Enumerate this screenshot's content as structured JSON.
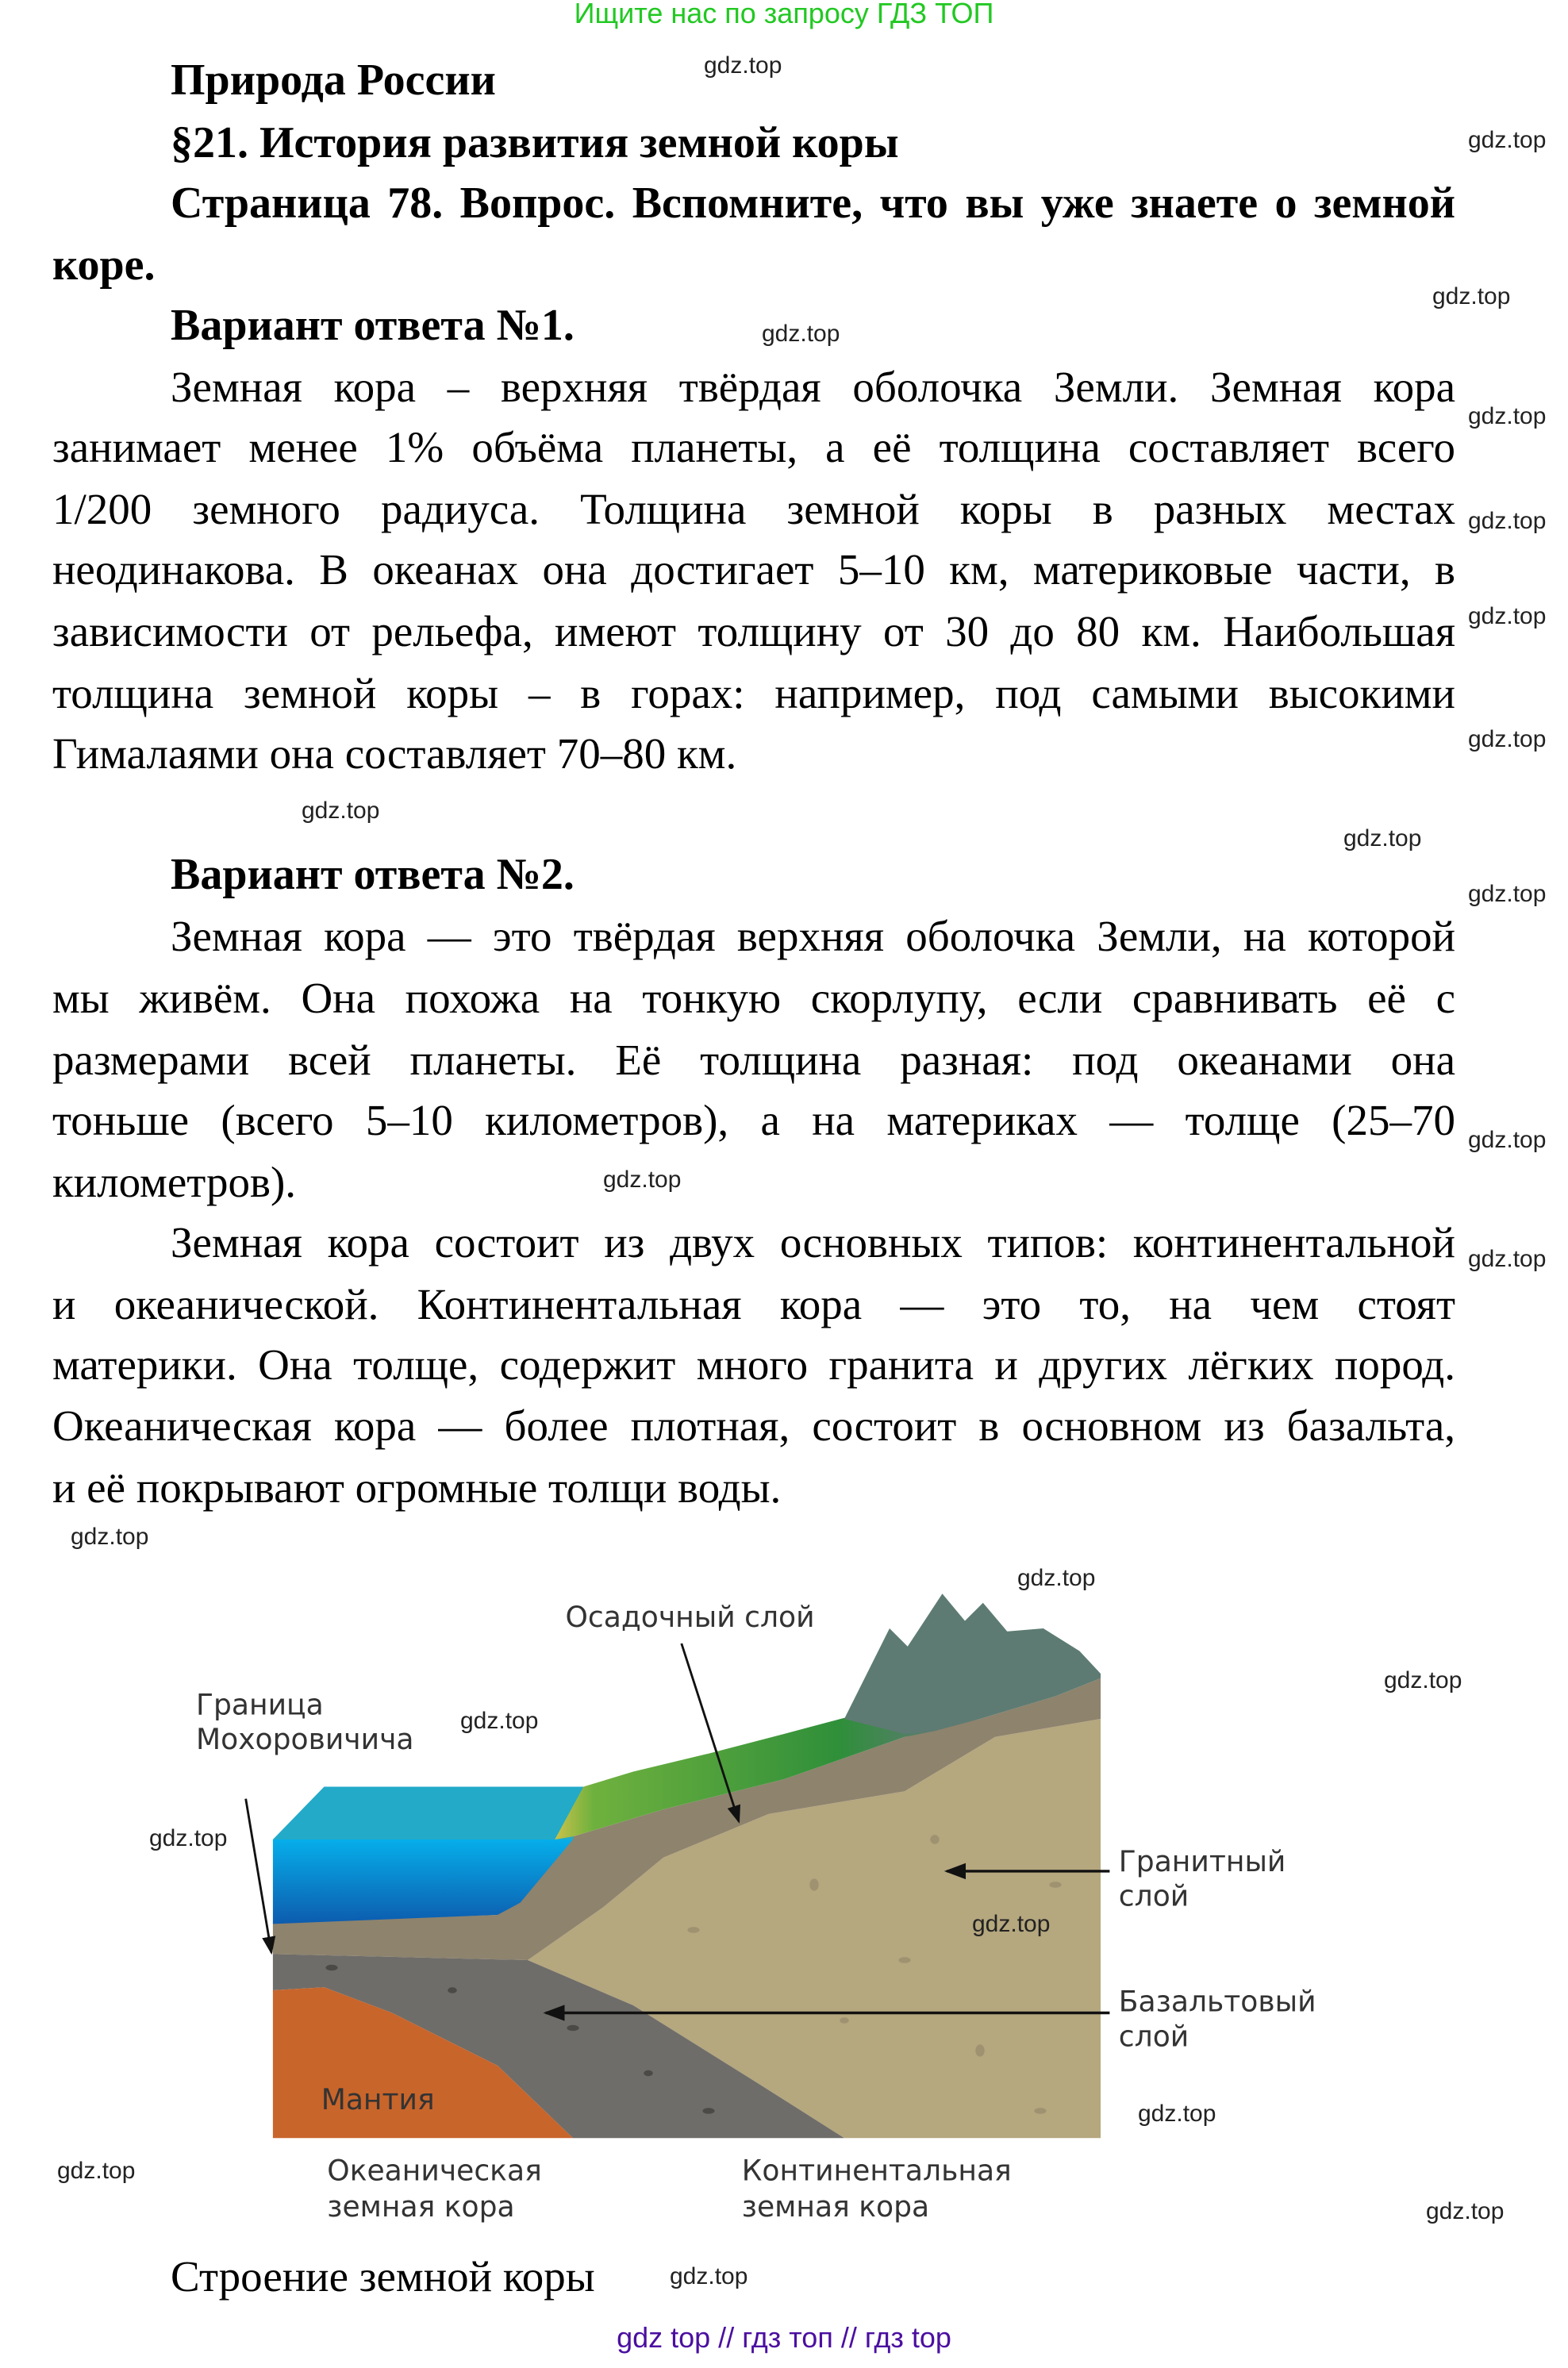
{
  "top_banner": "Ищите нас по запросу ГДЗ ТОП",
  "headings": {
    "subject": "Природа России",
    "paragraph": "§21. История развития земной коры",
    "question_line1": "Страница 78. Вопрос. Вспомните, что вы уже знаете о земной",
    "question_line2": "коре."
  },
  "answer1": {
    "title": "Вариант ответа №1.",
    "lines": [
      "Земная кора – верхняя твёрдая оболочка Земли. Земная кора",
      "занимает менее 1% объёма планеты, а её толщина составляет всего",
      "1/200 земного радиуса. Толщина земной коры в разных местах",
      "неодинакова. В океанах она достигает 5–10 км, материковые части, в",
      "зависимости от рельефа, имеют толщину от 30 до 80 км. Наибольшая",
      "толщина земной коры – в горах: например, под самыми высокими",
      "Гималаями она составляет 70–80 км."
    ]
  },
  "answer2": {
    "title": "Вариант ответа №2.",
    "lines": [
      "Земная кора — это твёрдая верхняя оболочка Земли, на которой",
      "мы живём. Она похожа на тонкую скорлупу, если сравнивать её с",
      "размерами всей планеты. Её толщина разная: под океанами она",
      "тоньше (всего 5–10 километров), а на материках — толще (25–70",
      "километров).",
      "Земная кора состоит из двух основных типов: континентальной",
      "и океанической. Континентальная кора — это то, на чем стоят",
      "материки. Она толще, содержит много гранита и других лёгких пород.",
      "Океаническая кора — более плотная, состоит в основном из базальта,",
      "и её покрывают огромные толщи воды."
    ]
  },
  "diagram": {
    "labels": {
      "sediment": "Осадочный слой",
      "moho_1": "Граница",
      "moho_2": "Мохоровичича",
      "granite_1": "Гранитный",
      "granite_2": "слой",
      "basalt_1": "Базальтовый",
      "basalt_2": "слой",
      "mantle": "Мантия",
      "oceanic_1": "Океаническая",
      "oceanic_2": "земная кора",
      "continental_1": "Континентальная",
      "continental_2": "земная кора"
    },
    "colors": {
      "mantle": "#c8652b",
      "basalt": "#6f6d69",
      "granite": "#b5a77e",
      "sediment": "#8e836d",
      "water": "#0a9fe0",
      "grass": "#3c9a3a",
      "mountain": "#5d7b72"
    }
  },
  "caption": "Строение земной коры",
  "watermarks": [
    "gdz.top",
    "gdz.top",
    "gdz.top",
    "gdz.top",
    "gdz.top",
    "gdz.top",
    "gdz.top",
    "gdz.top",
    "gdz.top",
    "gdz.top",
    "gdz.top",
    "gdz.top",
    "gdz.top",
    "gdz.top",
    "gdz.top",
    "gdz.top",
    "gdz.top",
    "gdz.top",
    "gdz.top",
    "gdz.top",
    "gdz.top",
    "gdz.top",
    "gdz.top",
    "gdz.top"
  ],
  "footer": "gdz top  //  гдз топ  //  гдз top"
}
